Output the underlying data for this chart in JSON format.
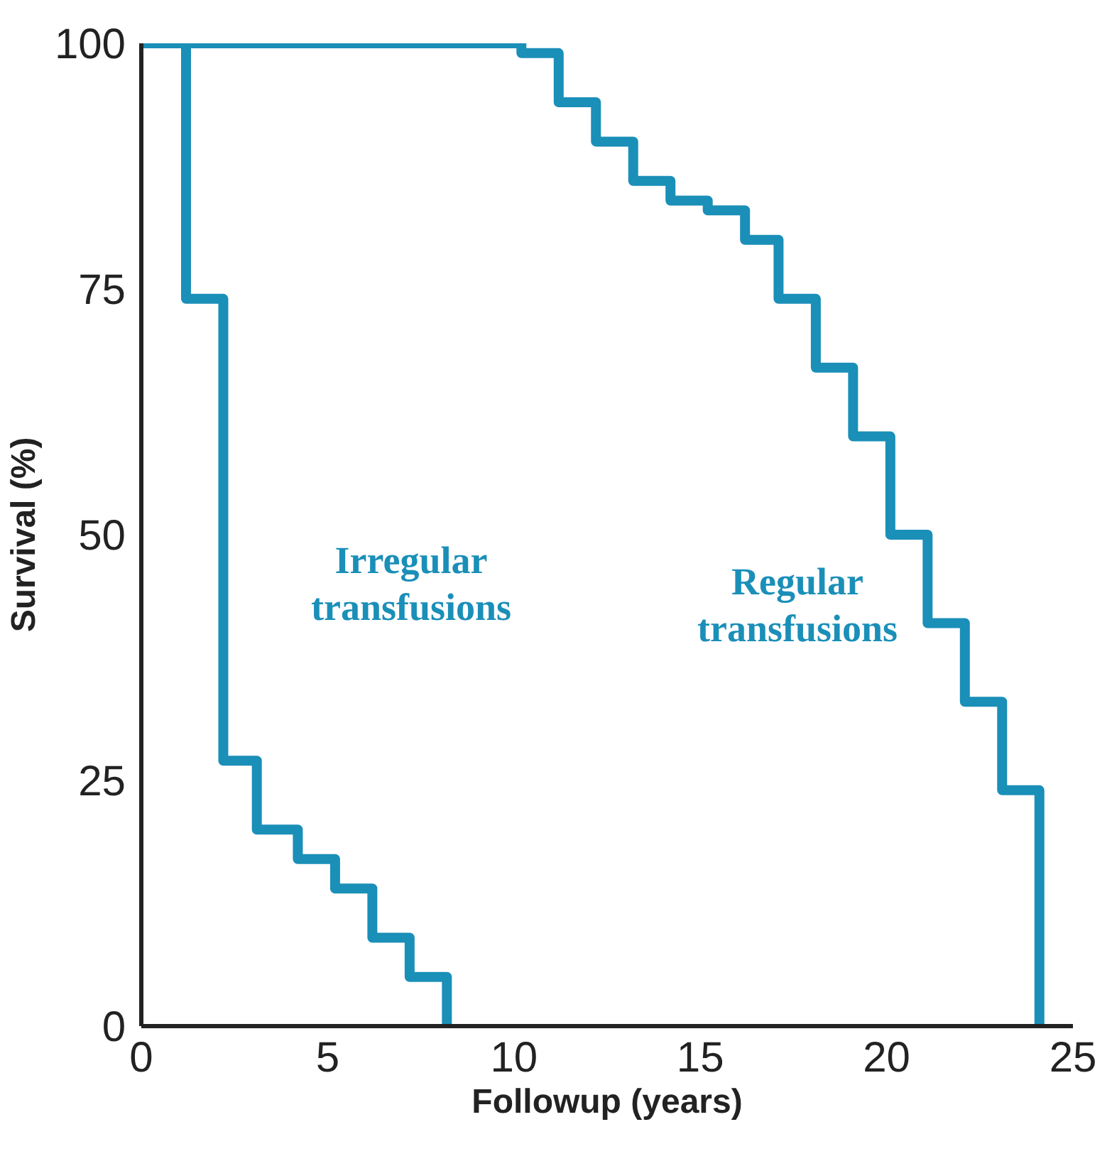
{
  "chart_data": {
    "type": "step",
    "xlabel": "Followup (years)",
    "ylabel": "Survival (%)",
    "xlim": [
      0,
      25
    ],
    "ylim": [
      0,
      100
    ],
    "xticks": [
      0,
      5,
      10,
      15,
      20,
      25
    ],
    "yticks": [
      0,
      25,
      50,
      75,
      100
    ],
    "grid": false,
    "series": [
      {
        "name": "Irregular\ntransfusions",
        "color": "#1a8fb8",
        "x": [
          0,
          1.2,
          2.2,
          3.1,
          4.2,
          5.2,
          6.2,
          7.2,
          8.2
        ],
        "values": [
          100,
          74,
          27,
          20,
          17,
          14,
          9,
          5,
          0
        ]
      },
      {
        "name": "Regular\ntransfusions",
        "color": "#1a8fb8",
        "x": [
          0,
          10.2,
          11.2,
          12.2,
          13.2,
          14.2,
          15.2,
          16.2,
          17.1,
          18.1,
          19.1,
          20.1,
          21.1,
          22.1,
          23.1,
          24.1
        ],
        "values": [
          100,
          99,
          94,
          90,
          86,
          84,
          83,
          80,
          74,
          67,
          60,
          50,
          41,
          33,
          24,
          0
        ]
      }
    ]
  }
}
